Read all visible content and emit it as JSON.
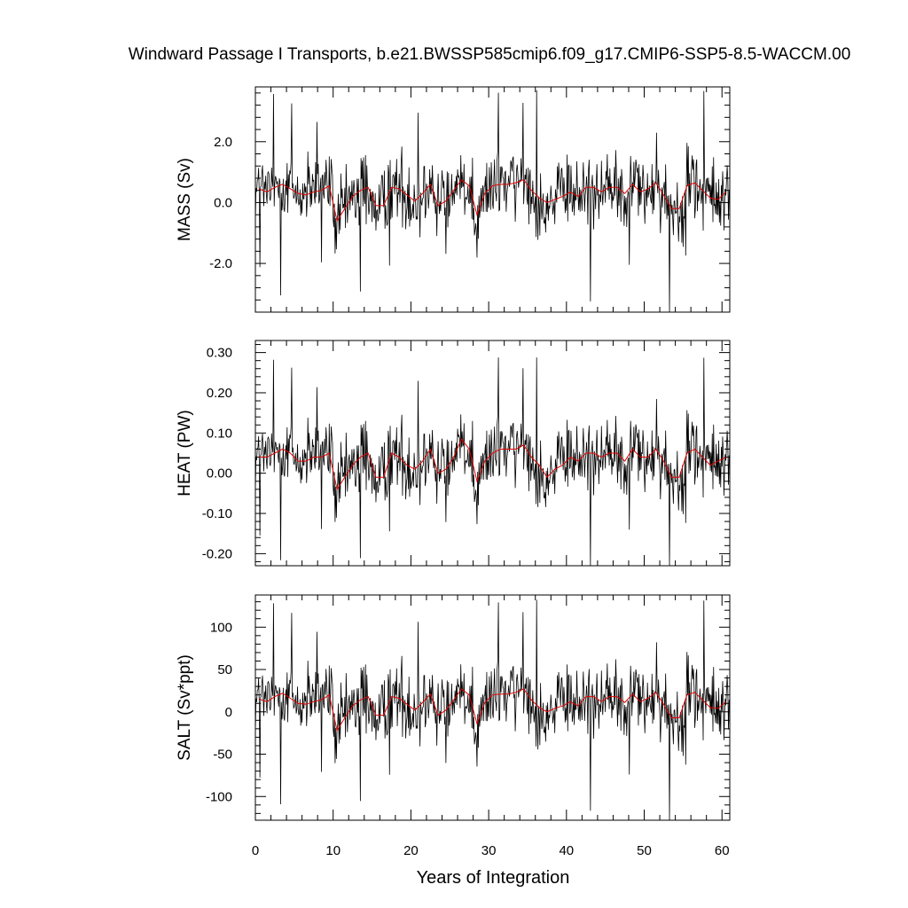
{
  "chart_data": {
    "type": "line",
    "title": "Windward Passage I Transports, b.e21.BWSSP585cmip6.f09_g17.CMIP6-SSP5-8.5-WACCM.00",
    "xlabel": "Years of Integration",
    "xlim": [
      0,
      61
    ],
    "x_ticks": [
      "0",
      "10",
      "20",
      "30",
      "40",
      "50",
      "60"
    ],
    "series_colors": {
      "monthly": "#000000",
      "annual_mean": "#e00000"
    },
    "grid": false,
    "panels": [
      {
        "ylabel": "MASS (Sv)",
        "ylim": [
          -3.6,
          3.8
        ],
        "y_ticks": [
          "2.0",
          "0.0",
          "-2.0"
        ],
        "annual_mean": [
          0.45,
          0.35,
          0.5,
          0.6,
          0.45,
          0.3,
          0.25,
          0.35,
          0.4,
          0.55,
          -0.6,
          -0.2,
          0.2,
          0.4,
          0.5,
          -0.1,
          -0.1,
          0.5,
          0.45,
          0.25,
          0.05,
          0.3,
          0.6,
          -0.1,
          0.05,
          0.4,
          0.75,
          0.55,
          -0.4,
          0.3,
          0.55,
          0.6,
          0.6,
          0.65,
          0.75,
          0.4,
          0.15,
          0.0,
          0.1,
          0.2,
          0.35,
          0.2,
          0.5,
          0.5,
          0.35,
          0.5,
          0.5,
          0.3,
          0.6,
          0.35,
          0.45,
          0.65,
          0.25,
          -0.2,
          -0.2,
          0.55,
          0.65,
          0.4,
          0.15,
          0.1,
          0.35
        ]
      },
      {
        "ylabel": "HEAT (PW)",
        "ylim": [
          -0.23,
          0.33
        ],
        "y_ticks": [
          "0.30",
          "0.20",
          "0.10",
          "0.00",
          "-0.10",
          "-0.20"
        ],
        "annual_mean": [
          0.04,
          0.04,
          0.05,
          0.06,
          0.05,
          0.03,
          0.03,
          0.04,
          0.04,
          0.05,
          -0.04,
          -0.01,
          0.02,
          0.04,
          0.05,
          -0.01,
          -0.01,
          0.05,
          0.04,
          0.02,
          0.01,
          0.03,
          0.06,
          0.0,
          0.01,
          0.04,
          0.085,
          0.06,
          -0.02,
          0.03,
          0.05,
          0.06,
          0.06,
          0.06,
          0.07,
          0.04,
          0.02,
          -0.01,
          0.01,
          0.02,
          0.04,
          0.03,
          0.05,
          0.05,
          0.04,
          0.05,
          0.05,
          0.03,
          0.06,
          0.04,
          0.04,
          0.06,
          0.03,
          -0.01,
          -0.01,
          0.05,
          0.06,
          0.04,
          0.02,
          0.03,
          0.04
        ]
      },
      {
        "ylabel": "SALT (Sv*ppt)",
        "ylim": [
          -128,
          138
        ],
        "y_ticks": [
          "100",
          "50",
          "0",
          "-50",
          "-100"
        ],
        "annual_mean": [
          15,
          12,
          18,
          22,
          16,
          10,
          9,
          12,
          14,
          20,
          -22,
          -7,
          7,
          14,
          18,
          -4,
          -4,
          18,
          16,
          9,
          2,
          11,
          21,
          -4,
          2,
          14,
          27,
          20,
          -14,
          11,
          20,
          21,
          21,
          23,
          27,
          14,
          5,
          0,
          4,
          7,
          12,
          7,
          18,
          18,
          12,
          18,
          18,
          11,
          21,
          12,
          16,
          23,
          9,
          -7,
          -7,
          20,
          23,
          14,
          5,
          4,
          12
        ]
      }
    ],
    "monthly_note": "monthly series: 732 points (61 years), values fluctuate roughly within the panel ranges with occasional spikes"
  }
}
